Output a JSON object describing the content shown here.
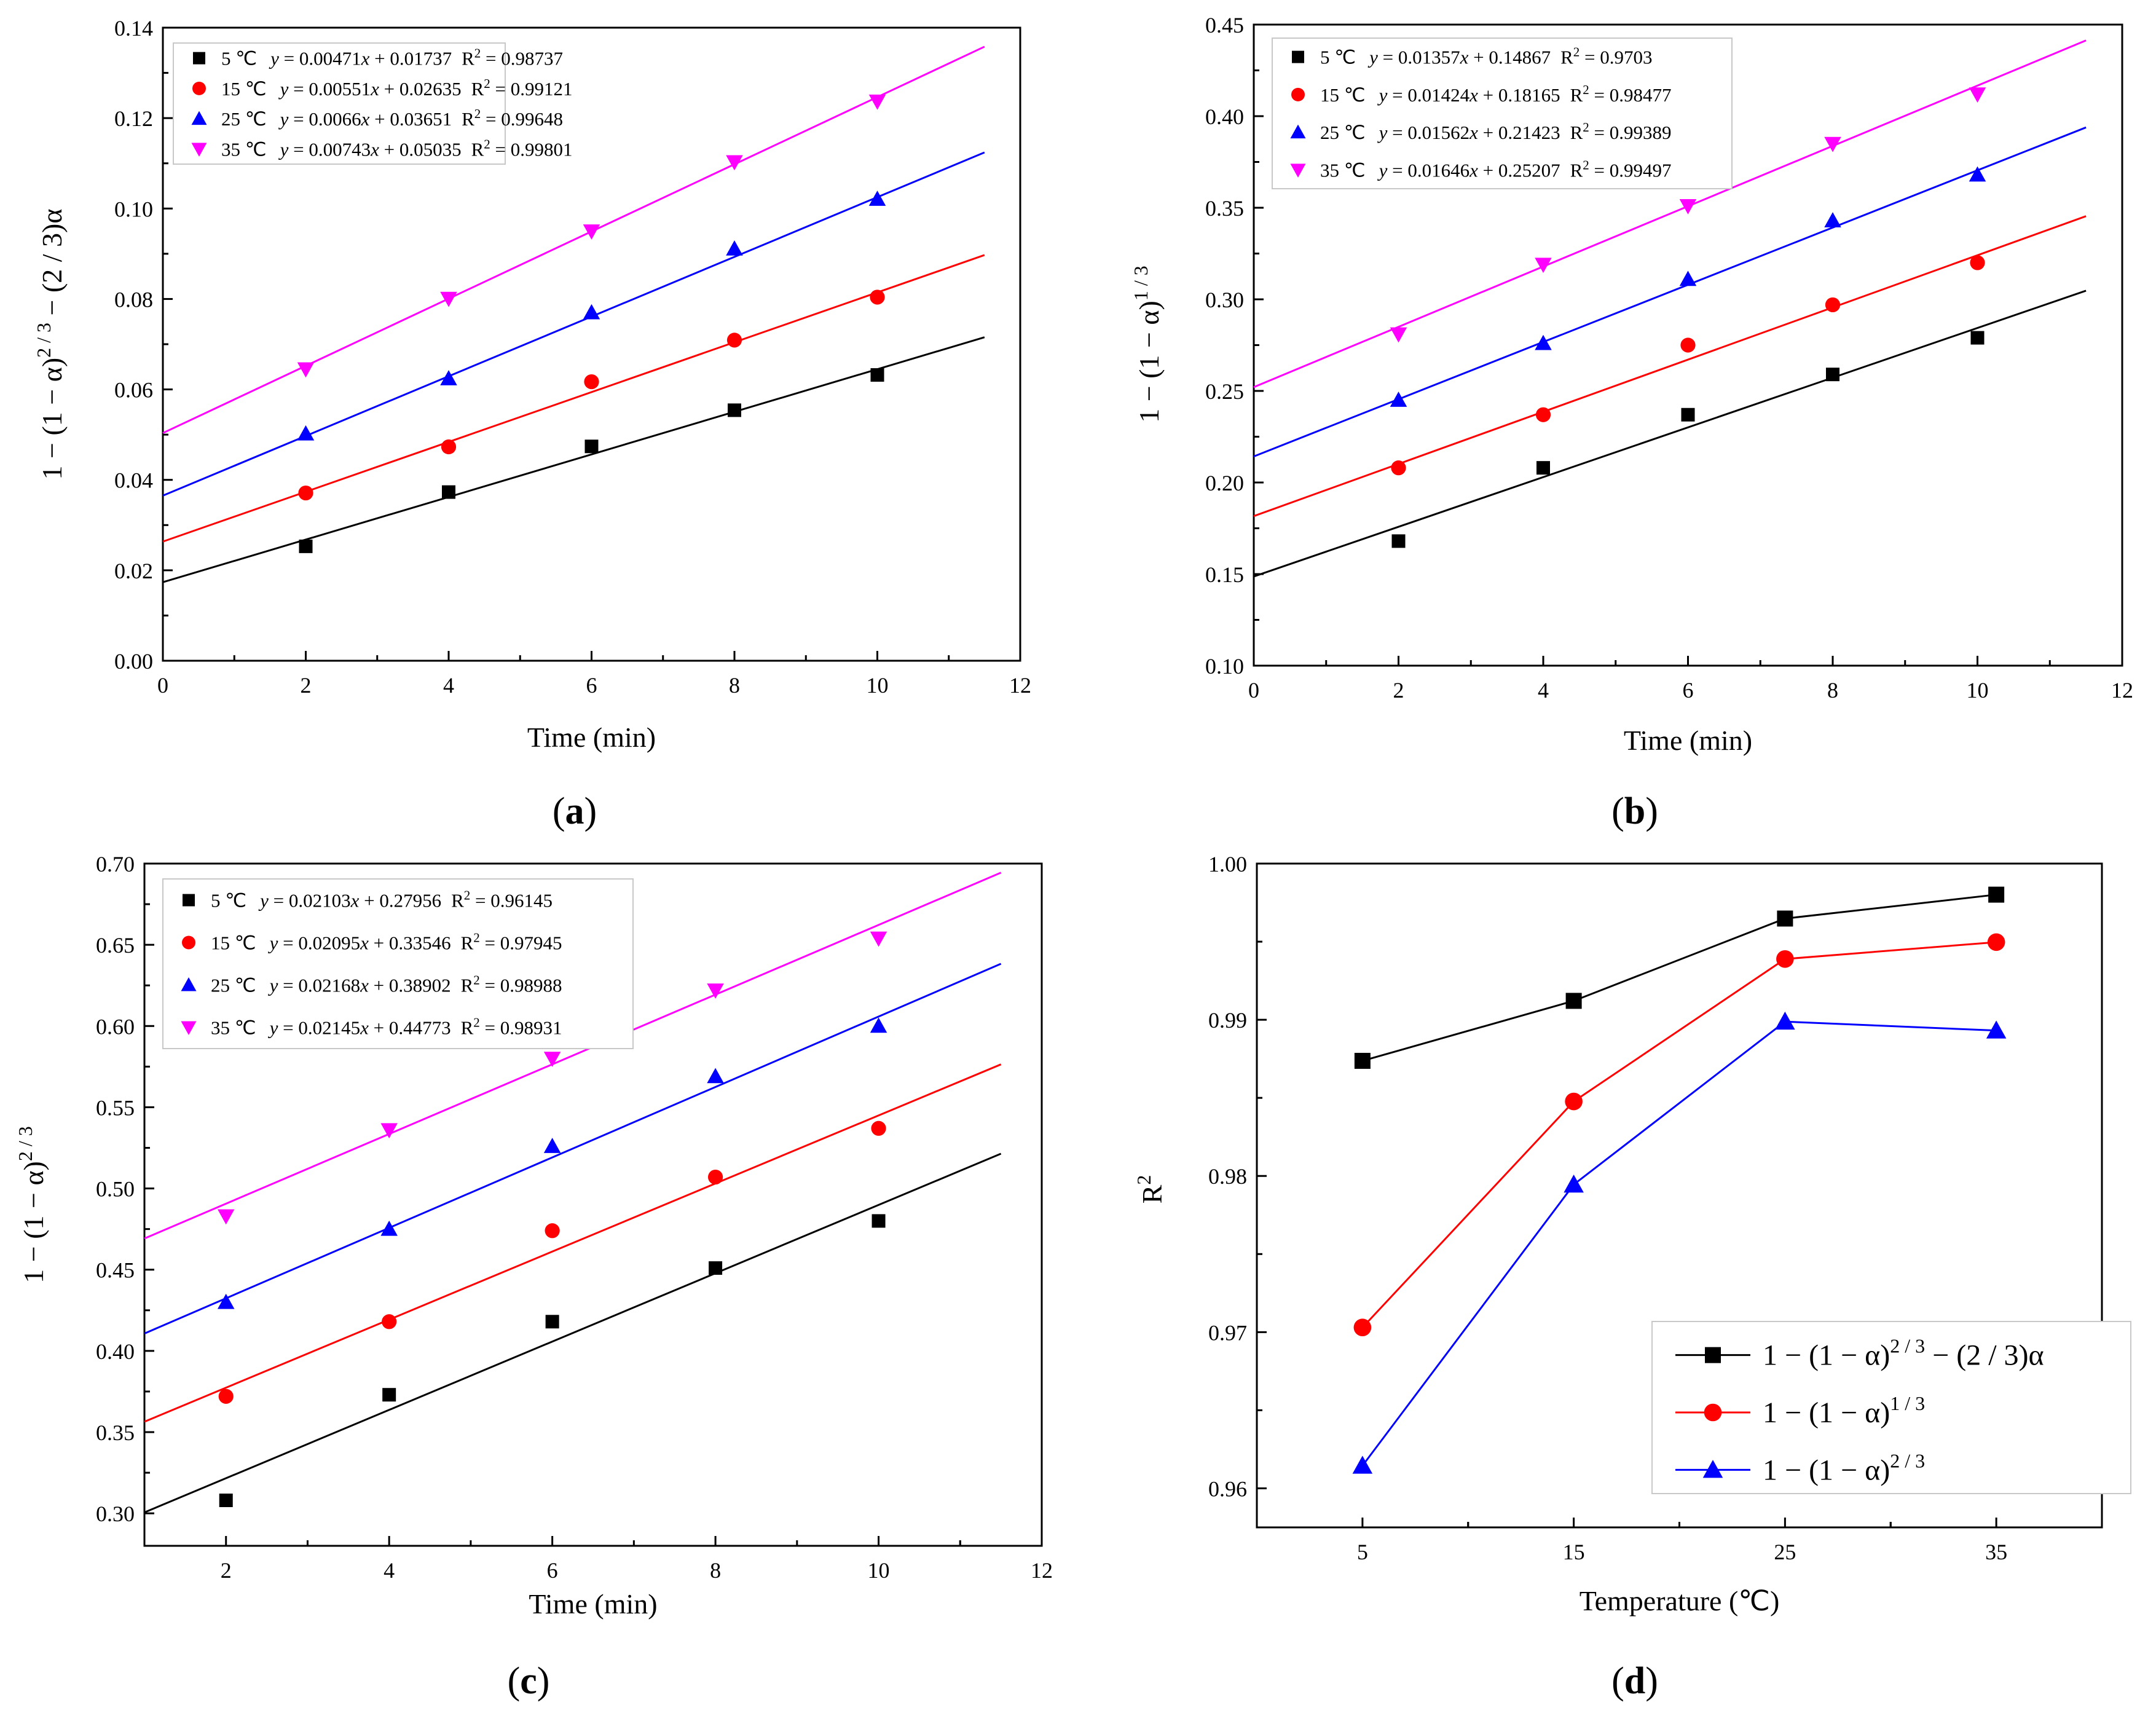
{
  "chart_data": [
    {
      "id": "a",
      "type": "scatter",
      "panel_label": "a",
      "xlabel": "Time (min)",
      "ylabel": "1 − (1 − α)^(2 / 3) − (2 / 3)α",
      "ylabel_parts": {
        "pre": "1 − (1 − α)",
        "sup": "2 / 3",
        "post": " − (2 / 3)α"
      },
      "xlim": [
        0,
        12
      ],
      "ylim": [
        0,
        0.14
      ],
      "x_ticks": [
        "0",
        "2",
        "4",
        "6",
        "8",
        "10",
        "12"
      ],
      "y_ticks": [
        "0.00",
        "0.02",
        "0.04",
        "0.06",
        "0.08",
        "0.10",
        "0.12",
        "0.14"
      ],
      "x": [
        2,
        4,
        6,
        8,
        10
      ],
      "fit_range": [
        0,
        11.5
      ],
      "legend_position": "top-left",
      "series": [
        {
          "name": "5 ℃",
          "color": "#000000",
          "marker": "square",
          "values": [
            0.0253,
            0.0373,
            0.0474,
            0.0554,
            0.0632
          ],
          "slope": 0.00471,
          "intercept": 0.01737,
          "eq_coef": "0.00471",
          "eq_const": "0.01737",
          "r2_value": "0.98737"
        },
        {
          "name": "15 ℃",
          "color": "#ff0000",
          "marker": "circle",
          "values": [
            0.0371,
            0.0473,
            0.0617,
            0.0709,
            0.0804
          ],
          "slope": 0.00551,
          "intercept": 0.02635,
          "eq_coef": "0.00551",
          "eq_const": "0.02635",
          "r2_value": "0.99121"
        },
        {
          "name": "25 ℃",
          "color": "#0000ff",
          "marker": "triangle-up",
          "values": [
            0.0502,
            0.0624,
            0.077,
            0.0911,
            0.1021
          ],
          "slope": 0.0066,
          "intercept": 0.03651,
          "eq_coef": "0.0066",
          "eq_const": "0.03651",
          "r2_value": "0.99648"
        },
        {
          "name": "35 ℃",
          "color": "#ff00ff",
          "marker": "triangle-down",
          "values": [
            0.0645,
            0.0801,
            0.095,
            0.1103,
            0.1237
          ],
          "slope": 0.00743,
          "intercept": 0.05035,
          "eq_coef": "0.00743",
          "eq_const": "0.05035",
          "r2_value": "0.99801"
        }
      ]
    },
    {
      "id": "b",
      "type": "scatter",
      "panel_label": "b",
      "xlabel": "Time (min)",
      "ylabel": "1 − (1 − α)^(1 / 3)",
      "ylabel_parts": {
        "pre": "1 − (1 − α)",
        "sup": "1 / 3",
        "post": ""
      },
      "xlim": [
        0,
        12
      ],
      "ylim": [
        0.1,
        0.45
      ],
      "x_ticks": [
        "0",
        "2",
        "4",
        "6",
        "8",
        "10",
        "12"
      ],
      "y_ticks": [
        "0.10",
        "0.15",
        "0.20",
        "0.25",
        "0.30",
        "0.35",
        "0.40",
        "0.45"
      ],
      "x": [
        2,
        4,
        6,
        8,
        10
      ],
      "fit_range": [
        0,
        11.5
      ],
      "legend_position": "top-left",
      "series": [
        {
          "name": "5 ℃",
          "color": "#000000",
          "marker": "square",
          "values": [
            0.168,
            0.208,
            0.237,
            0.259,
            0.279
          ],
          "slope": 0.01357,
          "intercept": 0.14867,
          "eq_coef": "0.01357",
          "eq_const": "0.14867",
          "r2_value": "0.9703"
        },
        {
          "name": "15 ℃",
          "color": "#ff0000",
          "marker": "circle",
          "values": [
            0.208,
            0.237,
            0.275,
            0.297,
            0.32
          ],
          "slope": 0.01424,
          "intercept": 0.18165,
          "eq_coef": "0.01424",
          "eq_const": "0.18165",
          "r2_value": "0.98477"
        },
        {
          "name": "25 ℃",
          "color": "#0000ff",
          "marker": "triangle-up",
          "values": [
            0.245,
            0.276,
            0.311,
            0.343,
            0.368
          ],
          "slope": 0.01562,
          "intercept": 0.21423,
          "eq_coef": "0.01562",
          "eq_const": "0.21423",
          "r2_value": "0.99389"
        },
        {
          "name": "35 ℃",
          "color": "#ff00ff",
          "marker": "triangle-down",
          "values": [
            0.281,
            0.319,
            0.351,
            0.385,
            0.412
          ],
          "slope": 0.01646,
          "intercept": 0.25207,
          "eq_coef": "0.01646",
          "eq_const": "0.25207",
          "r2_value": "0.99497"
        }
      ]
    },
    {
      "id": "c",
      "type": "scatter",
      "panel_label": "c",
      "xlabel": "Time (min)",
      "ylabel": "1 − (1 − α)^(2 / 3)",
      "ylabel_parts": {
        "pre": "1 − (1 − α)",
        "sup": "2 / 3",
        "post": ""
      },
      "xlim": [
        1,
        12
      ],
      "ylim": [
        0.28,
        0.7
      ],
      "x_ticks": [
        "2",
        "4",
        "6",
        "8",
        "10",
        "12"
      ],
      "y_ticks": [
        "0.30",
        "0.35",
        "0.40",
        "0.45",
        "0.50",
        "0.55",
        "0.60",
        "0.65",
        "0.70"
      ],
      "x": [
        2,
        4,
        6,
        8,
        10
      ],
      "fit_range": [
        1,
        11.5
      ],
      "legend_position": "top-left",
      "series": [
        {
          "name": "5 ℃",
          "color": "#000000",
          "marker": "square",
          "values": [
            0.308,
            0.373,
            0.418,
            0.451,
            0.48
          ],
          "slope": 0.02103,
          "intercept": 0.27956,
          "eq_coef": "0.02103",
          "eq_const": "0.27956",
          "r2_value": "0.96145"
        },
        {
          "name": "15 ℃",
          "color": "#ff0000",
          "marker": "circle",
          "values": [
            0.372,
            0.418,
            0.474,
            0.507,
            0.537
          ],
          "slope": 0.02095,
          "intercept": 0.33546,
          "eq_coef": "0.02095",
          "eq_const": "0.33546",
          "r2_value": "0.97945"
        },
        {
          "name": "25 ℃",
          "color": "#0000ff",
          "marker": "triangle-up",
          "values": [
            0.43,
            0.475,
            0.526,
            0.569,
            0.6
          ],
          "slope": 0.02168,
          "intercept": 0.38902,
          "eq_coef": "0.02168",
          "eq_const": "0.38902",
          "r2_value": "0.98988"
        },
        {
          "name": "35 ℃",
          "color": "#ff00ff",
          "marker": "triangle-down",
          "values": [
            0.483,
            0.536,
            0.58,
            0.622,
            0.654
          ],
          "slope": 0.02145,
          "intercept": 0.44773,
          "eq_coef": "0.02145",
          "eq_const": "0.44773",
          "r2_value": "0.98931"
        }
      ]
    },
    {
      "id": "d",
      "type": "line",
      "panel_label": "d",
      "xlabel": "Temperature (℃)",
      "ylabel": "R^2",
      "xlim": [
        0,
        40
      ],
      "ylim": [
        0.9575,
        1.0
      ],
      "x": [
        5,
        15,
        25,
        35
      ],
      "x_ticks": [
        "5",
        "15",
        "25",
        "35"
      ],
      "y_ticks": [
        "0.96",
        "0.97",
        "0.98",
        "0.99",
        "1.00"
      ],
      "legend_position": "bottom-right",
      "series": [
        {
          "name": "1 − (1 − α)^(2 / 3) − (2 / 3)α",
          "label_pre": "1 − (1 − α)",
          "label_sup": "2 / 3",
          "label_post": " − (2 / 3)α",
          "color": "#000000",
          "marker": "square",
          "values": [
            0.98737,
            0.99121,
            0.99648,
            0.99801
          ]
        },
        {
          "name": "1 − (1 − α)^(1 / 3)",
          "label_pre": "1 − (1 − α)",
          "label_sup": "1 / 3",
          "label_post": "",
          "color": "#ff0000",
          "marker": "circle",
          "values": [
            0.9703,
            0.98477,
            0.99389,
            0.99497
          ]
        },
        {
          "name": "1 − (1 − α)^(2 / 3)",
          "label_pre": "1 − (1 − α)",
          "label_sup": "2 / 3",
          "label_post": "",
          "color": "#0000ff",
          "marker": "triangle-up",
          "values": [
            0.96145,
            0.97945,
            0.98988,
            0.98931
          ]
        }
      ]
    }
  ]
}
